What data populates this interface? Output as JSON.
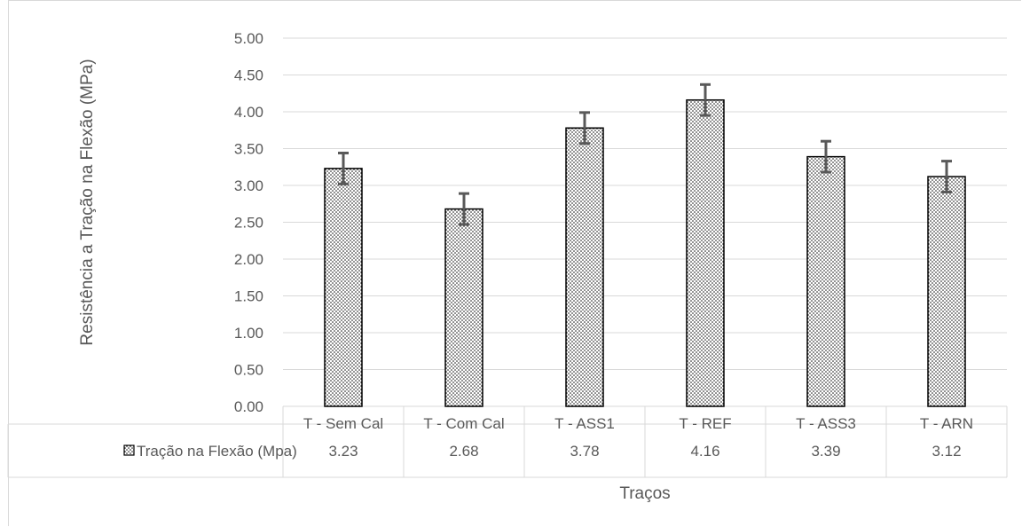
{
  "chart_data": {
    "type": "bar",
    "title": "",
    "xlabel": "Traços",
    "ylabel": "Resistência a Tração na Flexão (MPa)",
    "ylim": [
      0,
      5
    ],
    "yticks": [
      "0.00",
      "0.50",
      "1.00",
      "1.50",
      "2.00",
      "2.50",
      "3.00",
      "3.50",
      "4.00",
      "4.50",
      "5.00"
    ],
    "categories": [
      "T - Sem Cal",
      "T - Com Cal",
      "T - ASS1",
      "T - REF",
      "T - ASS3",
      "T - ARN"
    ],
    "series": [
      {
        "name": "Tração na Flexão (Mpa)",
        "values": [
          3.23,
          2.68,
          3.78,
          4.16,
          3.39,
          3.12
        ],
        "value_labels": [
          "3.23",
          "2.68",
          "3.78",
          "4.16",
          "3.39",
          "3.12"
        ],
        "error": [
          0.21,
          0.21,
          0.21,
          0.21,
          0.21,
          0.21
        ]
      }
    ],
    "data_table": true,
    "grid": true,
    "bar_pattern": "dotted",
    "colors": {
      "bar_fill": "#ffffff",
      "bar_dots": "#000000",
      "bar_edge": "#000000",
      "error_bar": "#595959",
      "grid": "#d9d9d9",
      "text": "#595959"
    }
  }
}
